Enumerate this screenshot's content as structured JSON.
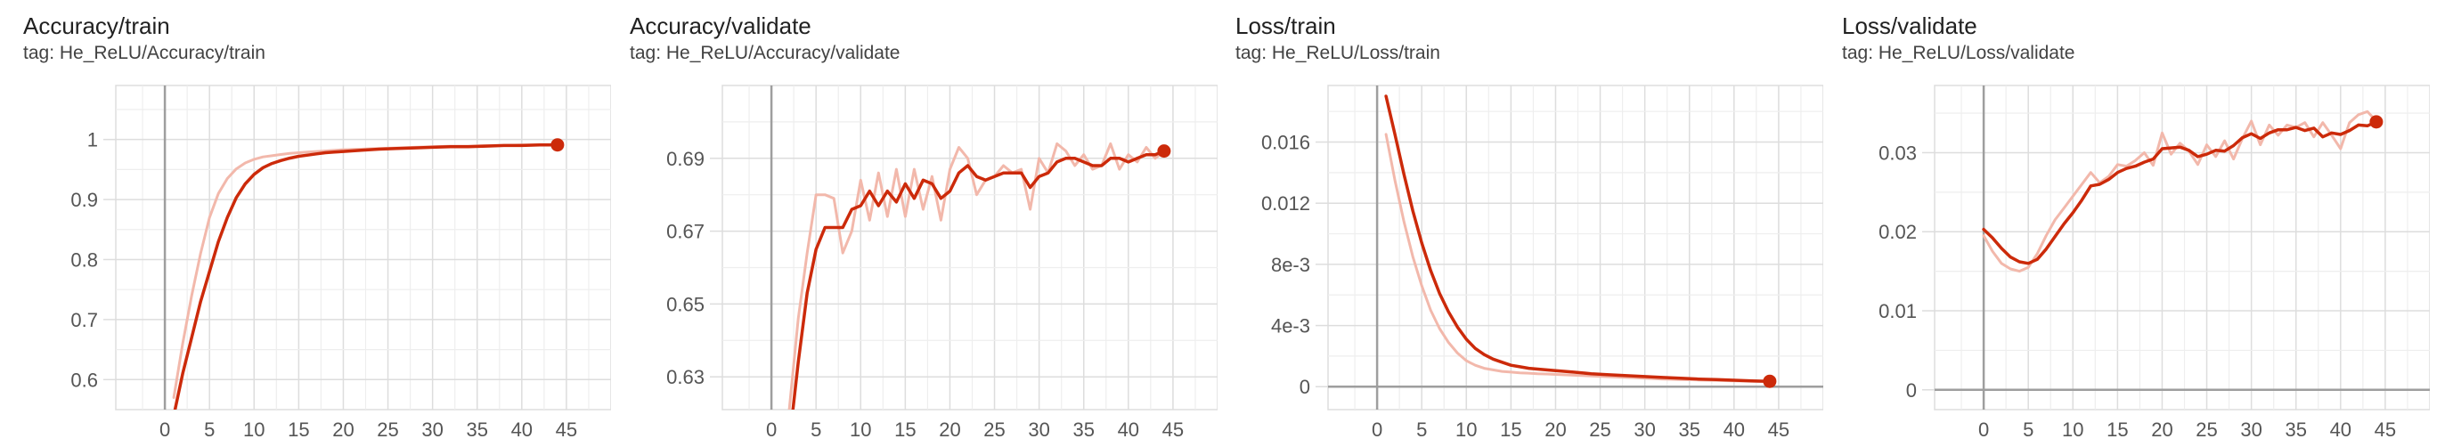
{
  "colors": {
    "smoothed": "#cc2a0a",
    "raw": "#f2b8ab",
    "grid": "#dddddd",
    "axis": "#9e9e9e",
    "zero": "#9e9e9e",
    "tick": "#555555"
  },
  "chart_data": [
    {
      "type": "line",
      "title": "Accuracy/train",
      "tag": "tag: He_ReLU/Accuracy/train",
      "xlim": [
        -5.5,
        50
      ],
      "ylim": [
        0.55,
        1.09
      ],
      "xticks": [
        0,
        5,
        10,
        15,
        20,
        25,
        30,
        35,
        40,
        45
      ],
      "xtick_labels": [
        "0",
        "5",
        "10",
        "15",
        "20",
        "25",
        "30",
        "35",
        "40",
        "45"
      ],
      "yticks": [
        0.6,
        0.7,
        0.8,
        0.9,
        1.0
      ],
      "ytick_labels": [
        "0.6",
        "0.7",
        "0.8",
        "0.9",
        "1"
      ],
      "series": [
        {
          "name": "raw",
          "x": [
            1,
            2,
            3,
            4,
            5,
            6,
            7,
            8,
            9,
            10,
            11,
            12,
            13,
            14,
            15,
            16,
            17,
            18,
            19,
            20,
            22,
            24,
            26,
            28,
            30,
            32,
            34,
            36,
            38,
            40,
            42,
            44
          ],
          "y": [
            0.57,
            0.66,
            0.74,
            0.81,
            0.87,
            0.91,
            0.935,
            0.951,
            0.961,
            0.967,
            0.971,
            0.973,
            0.975,
            0.977,
            0.978,
            0.979,
            0.98,
            0.981,
            0.982,
            0.983,
            0.984,
            0.985,
            0.986,
            0.987,
            0.988,
            0.989,
            0.989,
            0.99,
            0.99,
            0.991,
            0.991,
            0.992
          ]
        },
        {
          "name": "smoothed",
          "x": [
            1,
            2,
            3,
            4,
            5,
            6,
            7,
            8,
            9,
            10,
            11,
            12,
            13,
            14,
            15,
            16,
            17,
            18,
            19,
            20,
            22,
            24,
            26,
            28,
            30,
            32,
            34,
            36,
            38,
            40,
            42,
            44
          ],
          "y": [
            0.54,
            0.61,
            0.67,
            0.73,
            0.78,
            0.83,
            0.87,
            0.903,
            0.926,
            0.942,
            0.953,
            0.96,
            0.965,
            0.969,
            0.972,
            0.974,
            0.976,
            0.978,
            0.979,
            0.98,
            0.982,
            0.984,
            0.985,
            0.986,
            0.987,
            0.988,
            0.988,
            0.989,
            0.99,
            0.99,
            0.991,
            0.991
          ]
        }
      ]
    },
    {
      "type": "line",
      "title": "Accuracy/validate",
      "tag": "tag: He_ReLU/Accuracy/validate",
      "xlim": [
        -5.5,
        50
      ],
      "ylim": [
        0.621,
        0.71
      ],
      "xticks": [
        0,
        5,
        10,
        15,
        20,
        25,
        30,
        35,
        40,
        45
      ],
      "xtick_labels": [
        "0",
        "5",
        "10",
        "15",
        "20",
        "25",
        "30",
        "35",
        "40",
        "45"
      ],
      "yticks": [
        0.63,
        0.65,
        0.67,
        0.69
      ],
      "ytick_labels": [
        "0.63",
        "0.65",
        "0.67",
        "0.69"
      ],
      "series": [
        {
          "name": "raw",
          "x": [
            2,
            3,
            4,
            5,
            6,
            7,
            8,
            9,
            10,
            11,
            12,
            13,
            14,
            15,
            16,
            17,
            18,
            19,
            20,
            21,
            22,
            23,
            24,
            25,
            26,
            27,
            28,
            29,
            30,
            31,
            32,
            33,
            34,
            35,
            36,
            37,
            38,
            39,
            40,
            41,
            42,
            43,
            44
          ],
          "y": [
            0.621,
            0.646,
            0.664,
            0.68,
            0.68,
            0.679,
            0.664,
            0.67,
            0.684,
            0.673,
            0.686,
            0.674,
            0.687,
            0.674,
            0.687,
            0.676,
            0.685,
            0.673,
            0.687,
            0.693,
            0.69,
            0.68,
            0.684,
            0.685,
            0.688,
            0.686,
            0.687,
            0.676,
            0.69,
            0.686,
            0.694,
            0.692,
            0.688,
            0.691,
            0.687,
            0.688,
            0.694,
            0.687,
            0.691,
            0.689,
            0.693,
            0.69,
            0.692
          ]
        },
        {
          "name": "smoothed",
          "x": [
            2,
            3,
            4,
            5,
            6,
            7,
            8,
            9,
            10,
            11,
            12,
            13,
            14,
            15,
            16,
            17,
            18,
            19,
            20,
            21,
            22,
            23,
            24,
            25,
            26,
            27,
            28,
            29,
            30,
            31,
            32,
            33,
            34,
            35,
            36,
            37,
            38,
            39,
            40,
            41,
            42,
            43,
            44
          ],
          "y": [
            0.612,
            0.634,
            0.653,
            0.665,
            0.671,
            0.671,
            0.671,
            0.676,
            0.677,
            0.681,
            0.677,
            0.681,
            0.678,
            0.683,
            0.679,
            0.684,
            0.683,
            0.679,
            0.681,
            0.686,
            0.688,
            0.685,
            0.684,
            0.685,
            0.686,
            0.686,
            0.686,
            0.682,
            0.685,
            0.686,
            0.689,
            0.69,
            0.69,
            0.689,
            0.688,
            0.688,
            0.69,
            0.69,
            0.689,
            0.69,
            0.691,
            0.691,
            0.692
          ]
        }
      ]
    },
    {
      "type": "line",
      "title": "Loss/train",
      "tag": "tag: He_ReLU/Loss/train",
      "xlim": [
        -5.5,
        50
      ],
      "ylim": [
        -0.0015,
        0.0197
      ],
      "xticks": [
        0,
        5,
        10,
        15,
        20,
        25,
        30,
        35,
        40,
        45
      ],
      "xtick_labels": [
        "0",
        "5",
        "10",
        "15",
        "20",
        "25",
        "30",
        "35",
        "40",
        "45"
      ],
      "yticks": [
        0,
        0.004,
        0.008,
        0.012,
        0.016
      ],
      "ytick_labels": [
        "0",
        "4e-3",
        "8e-3",
        "0.012",
        "0.016"
      ],
      "series": [
        {
          "name": "raw",
          "x": [
            1,
            2,
            3,
            4,
            5,
            6,
            7,
            8,
            9,
            10,
            11,
            12,
            13,
            14,
            15,
            16,
            17,
            18,
            19,
            20,
            22,
            24,
            26,
            28,
            30,
            32,
            34,
            36,
            38,
            40,
            42,
            44
          ],
          "y": [
            0.0165,
            0.0135,
            0.0108,
            0.0085,
            0.0066,
            0.005,
            0.0038,
            0.0029,
            0.0022,
            0.0017,
            0.0014,
            0.0012,
            0.0011,
            0.001,
            0.00095,
            0.0009,
            0.00088,
            0.00085,
            0.00083,
            0.0008,
            0.00075,
            0.0007,
            0.00065,
            0.0006,
            0.00055,
            0.0005,
            0.00047,
            0.00044,
            0.00041,
            0.00038,
            0.00035,
            0.00032
          ]
        },
        {
          "name": "smoothed",
          "x": [
            1,
            2,
            3,
            4,
            5,
            6,
            7,
            8,
            9,
            10,
            11,
            12,
            13,
            14,
            15,
            16,
            17,
            18,
            19,
            20,
            22,
            24,
            26,
            28,
            30,
            32,
            34,
            36,
            38,
            40,
            42,
            44
          ],
          "y": [
            0.019,
            0.0165,
            0.0139,
            0.0115,
            0.0094,
            0.0076,
            0.0061,
            0.0049,
            0.0039,
            0.0031,
            0.0025,
            0.0021,
            0.0018,
            0.0016,
            0.0014,
            0.0013,
            0.0012,
            0.00115,
            0.0011,
            0.00105,
            0.00095,
            0.00085,
            0.00078,
            0.00072,
            0.00066,
            0.0006,
            0.00055,
            0.0005,
            0.00046,
            0.00042,
            0.00038,
            0.00035
          ]
        }
      ]
    },
    {
      "type": "line",
      "title": "Loss/validate",
      "tag": "tag: He_ReLU/Loss/validate",
      "xlim": [
        -5.5,
        50
      ],
      "ylim": [
        -0.0025,
        0.0385
      ],
      "xticks": [
        0,
        5,
        10,
        15,
        20,
        25,
        30,
        35,
        40,
        45
      ],
      "xtick_labels": [
        "0",
        "5",
        "10",
        "15",
        "20",
        "25",
        "30",
        "35",
        "40",
        "45"
      ],
      "yticks": [
        0,
        0.01,
        0.02,
        0.03
      ],
      "ytick_labels": [
        "0",
        "0.01",
        "0.02",
        "0.03"
      ],
      "series": [
        {
          "name": "raw",
          "x": [
            0,
            1,
            2,
            3,
            4,
            5,
            6,
            7,
            8,
            9,
            10,
            11,
            12,
            13,
            14,
            15,
            16,
            17,
            18,
            19,
            20,
            21,
            22,
            23,
            24,
            25,
            26,
            27,
            28,
            29,
            30,
            31,
            32,
            33,
            34,
            35,
            36,
            37,
            38,
            39,
            40,
            41,
            42,
            43,
            44
          ],
          "y": [
            0.0195,
            0.0175,
            0.016,
            0.0153,
            0.015,
            0.0155,
            0.0172,
            0.0195,
            0.0215,
            0.023,
            0.0245,
            0.026,
            0.0275,
            0.0262,
            0.027,
            0.0285,
            0.0283,
            0.029,
            0.03,
            0.0284,
            0.0325,
            0.0298,
            0.0312,
            0.0302,
            0.0285,
            0.031,
            0.0295,
            0.0315,
            0.0292,
            0.0318,
            0.034,
            0.031,
            0.0335,
            0.0322,
            0.0335,
            0.0332,
            0.0338,
            0.032,
            0.0338,
            0.0322,
            0.0305,
            0.0338,
            0.0348,
            0.0352,
            0.034
          ]
        },
        {
          "name": "smoothed",
          "x": [
            0,
            1,
            2,
            3,
            4,
            5,
            6,
            7,
            8,
            9,
            10,
            11,
            12,
            13,
            14,
            15,
            16,
            17,
            18,
            19,
            20,
            21,
            22,
            23,
            24,
            25,
            26,
            27,
            28,
            29,
            30,
            31,
            32,
            33,
            34,
            35,
            36,
            37,
            38,
            39,
            40,
            41,
            42,
            43,
            44
          ],
          "y": [
            0.0203,
            0.0192,
            0.0179,
            0.0168,
            0.0162,
            0.016,
            0.0165,
            0.0178,
            0.0194,
            0.021,
            0.0224,
            0.024,
            0.0258,
            0.026,
            0.0266,
            0.0275,
            0.028,
            0.0283,
            0.0288,
            0.0292,
            0.0305,
            0.0306,
            0.0307,
            0.0303,
            0.0295,
            0.0298,
            0.0303,
            0.0302,
            0.0309,
            0.0319,
            0.0324,
            0.0318,
            0.0325,
            0.0329,
            0.0329,
            0.0332,
            0.0328,
            0.0331,
            0.032,
            0.0325,
            0.0323,
            0.0328,
            0.0335,
            0.0334,
            0.0339
          ]
        }
      ]
    }
  ]
}
